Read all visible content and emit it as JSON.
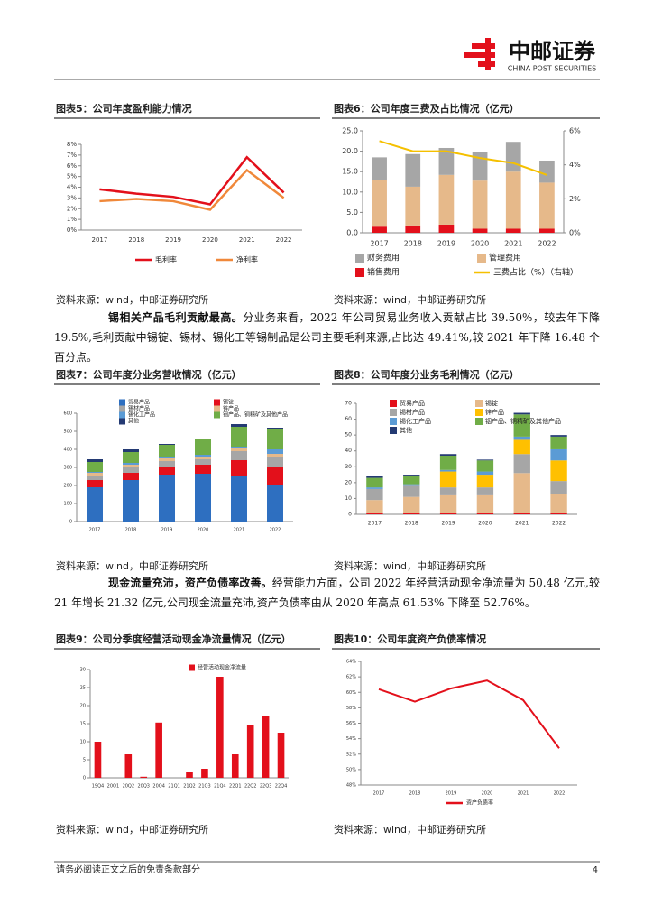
{
  "header": {
    "brand": "中邮证券",
    "brand_en": "CHINA POST SECURITIES"
  },
  "figures": [
    {
      "title": "图表5：公司年度盈利能力情况",
      "source": "资料来源：wind，中邮证券研究所",
      "chart_data": {
        "type": "line",
        "categories": [
          "2017",
          "2018",
          "2019",
          "2020",
          "2021",
          "2022"
        ],
        "series": [
          {
            "name": "毛利率",
            "color": "#e3101b",
            "values": [
              3.8,
              3.4,
              3.1,
              2.4,
              6.8,
              3.5
            ]
          },
          {
            "name": "净利率",
            "color": "#f0883a",
            "values": [
              2.7,
              2.9,
              2.7,
              1.9,
              5.6,
              3.0
            ]
          }
        ],
        "ylim": [
          0,
          8
        ],
        "yticks": [
          {
            "value": 0,
            "label": "0%"
          },
          {
            "value": 1,
            "label": "1%"
          },
          {
            "value": 2,
            "label": "2%"
          },
          {
            "value": 3,
            "label": "3%"
          },
          {
            "value": 4,
            "label": "4%"
          },
          {
            "value": 5,
            "label": "5%"
          },
          {
            "value": 6,
            "label": "6%"
          },
          {
            "value": 7,
            "label": "7%"
          },
          {
            "value": 8,
            "label": "8%"
          }
        ],
        "legend": "bottom"
      }
    },
    {
      "title": "图表6：公司年度三费及占比情况（亿元）",
      "source": "资料来源：wind，中邮证券研究所",
      "chart_data": {
        "type": "bar",
        "stacked": true,
        "categories": [
          "2017",
          "2018",
          "2019",
          "2020",
          "2021",
          "2022"
        ],
        "series": [
          {
            "name": "财务费用",
            "color": "#a6a6a6",
            "values": [
              5.5,
              8.0,
              6.6,
              7.0,
              7.3,
              5.4
            ],
            "order": 0
          },
          {
            "name": "管理费用",
            "color": "#e6b98a",
            "values": [
              11.5,
              9.5,
              12.2,
              11.8,
              14.0,
              11.3
            ],
            "order": 1
          },
          {
            "name": "销售费用",
            "color": "#e3101b",
            "values": [
              1.5,
              1.8,
              2.0,
              1.0,
              1.0,
              1.0
            ],
            "order": 2
          },
          {
            "name": "三费占比（%）（右轴）",
            "color": "#f5c000",
            "type": "line",
            "axis": "y2",
            "values": [
              5.4,
              4.8,
              4.8,
              4.4,
              4.1,
              3.4
            ]
          }
        ],
        "ylim": [
          0,
          25
        ],
        "yticks": [
          {
            "value": 0,
            "label": "0.0"
          },
          {
            "value": 5,
            "label": "5.0"
          },
          {
            "value": 10,
            "label": "10.0"
          },
          {
            "value": 15,
            "label": "15.0"
          },
          {
            "value": 20,
            "label": "20.0"
          },
          {
            "value": 25,
            "label": "25.0"
          }
        ],
        "y2lim": [
          0,
          6
        ],
        "y2ticks": [
          {
            "value": 0,
            "label": "0%"
          },
          {
            "value": 2,
            "label": "2%"
          },
          {
            "value": 4,
            "label": "4%"
          },
          {
            "value": 6,
            "label": "6%"
          }
        ],
        "legend": "bottom"
      }
    },
    {
      "title": "图表7：公司年度分业务营收情况（亿元）",
      "source": "资料来源：wind，中邮证券研究所",
      "chart_data": {
        "type": "bar",
        "stacked": true,
        "categories": [
          "2017",
          "2018",
          "2019",
          "2020",
          "2021",
          "2022"
        ],
        "series": [
          {
            "name": "贸易产品",
            "color": "#2e6fc0",
            "values": [
              190,
              230,
              260,
              265,
              250,
              205
            ]
          },
          {
            "name": "锡锭",
            "color": "#e3101b",
            "values": [
              40,
              40,
              45,
              50,
              90,
              100
            ]
          },
          {
            "name": "锡材产品",
            "color": "#a6a6a6",
            "values": [
              25,
              30,
              30,
              30,
              50,
              50
            ]
          },
          {
            "name": "锌产品",
            "color": "#e6b98a",
            "values": [
              15,
              15,
              15,
              15,
              15,
              20
            ]
          },
          {
            "name": "锡化工产品",
            "color": "#5b9bd5",
            "values": [
              5,
              10,
              10,
              10,
              10,
              25
            ]
          },
          {
            "name": "铟产品、铜精矿及其他产品",
            "color": "#70ad47",
            "values": [
              55,
              60,
              65,
              85,
              110,
              115
            ]
          },
          {
            "name": "其他",
            "color": "#243a73",
            "values": [
              15,
              15,
              5,
              5,
              15,
              5
            ]
          }
        ],
        "ylim": [
          0,
          600
        ],
        "yticks": [
          0,
          100,
          200,
          300,
          400,
          500,
          600
        ],
        "legend": "top"
      }
    },
    {
      "title": "图表8：公司年度分业务毛利情况（亿元）",
      "source": "资料来源：wind，中邮证券研究所",
      "chart_data": {
        "type": "bar",
        "stacked": true,
        "categories": [
          "2017",
          "2018",
          "2019",
          "2020",
          "2021",
          "2022"
        ],
        "series": [
          {
            "name": "贸易产品",
            "color": "#e3101b",
            "values": [
              1,
              1,
              1,
              1,
              1,
              1
            ]
          },
          {
            "name": "锡锭",
            "color": "#e6b98a",
            "values": [
              8,
              10,
              11,
              11,
              25,
              12
            ]
          },
          {
            "name": "锡材产品",
            "color": "#a6a6a6",
            "values": [
              7,
              7,
              5,
              5,
              12,
              8
            ]
          },
          {
            "name": "锌产品",
            "color": "#ffc000",
            "values": [
              0,
              0,
              10,
              8,
              9,
              13
            ]
          },
          {
            "name": "锡化工产品",
            "color": "#5b9bd5",
            "values": [
              1,
              1,
              1,
              2,
              2,
              7
            ]
          },
          {
            "name": "铟产品、铜精矿及其他产品",
            "color": "#70ad47",
            "values": [
              6,
              5,
              9,
              7,
              14,
              8
            ]
          },
          {
            "name": "其他",
            "color": "#243a73",
            "values": [
              1,
              1,
              1,
              0.5,
              1,
              1
            ]
          }
        ],
        "ylim": [
          0,
          70
        ],
        "yticks": [
          0,
          10,
          20,
          30,
          40,
          50,
          60,
          70
        ],
        "legend": "top"
      }
    },
    {
      "title": "图表9：公司分季度经营活动现金净流量情况（亿元）",
      "source": "资料来源：wind，中邮证券研究所",
      "chart_data": {
        "type": "bar",
        "categories": [
          "19Q4",
          "20Q1",
          "20Q2",
          "20Q3",
          "20Q4",
          "21Q1",
          "21Q2",
          "21Q3",
          "21Q4",
          "22Q1",
          "22Q2",
          "22Q3",
          "22Q4"
        ],
        "series": [
          {
            "name": "经营活动现金净流量",
            "color": "#e3101b",
            "values": [
              10,
              0,
              6.5,
              0.3,
              15.3,
              0,
              1.5,
              2.5,
              28,
              6.5,
              14.5,
              17,
              12.5
            ]
          }
        ],
        "ylim": [
          0,
          30
        ],
        "yticks": [
          0,
          5,
          10,
          15,
          20,
          25,
          30
        ],
        "legend": "top"
      }
    },
    {
      "title": "图表10：公司年度资产负债率情况",
      "source": "资料来源：wind，中邮证券研究所",
      "chart_data": {
        "type": "line",
        "categories": [
          "2017",
          "2018",
          "2019",
          "2020",
          "2021",
          "2022"
        ],
        "series": [
          {
            "name": "资产负债率",
            "color": "#e3101b",
            "values": [
              60.4,
              58.8,
              60.5,
              61.53,
              59.0,
              52.76
            ]
          }
        ],
        "ylim": [
          48,
          64
        ],
        "yticks": [
          {
            "value": 48,
            "label": "48%"
          },
          {
            "value": 50,
            "label": "50%"
          },
          {
            "value": 52,
            "label": "52%"
          },
          {
            "value": 54,
            "label": "54%"
          },
          {
            "value": 56,
            "label": "56%"
          },
          {
            "value": 58,
            "label": "58%"
          },
          {
            "value": 60,
            "label": "60%"
          },
          {
            "value": 62,
            "label": "62%"
          },
          {
            "value": 64,
            "label": "64%"
          }
        ],
        "legend": "bottom"
      }
    }
  ],
  "paragraphs": [
    {
      "bold": "锡相关产品毛利贡献最高。",
      "text": "分业务来看，2022 年公司贸易业务收入贡献占比 39.50%，较去年下降 19.5%,毛利贡献中锡锭、锡材、锡化工等锡制品是公司主要毛利来源,占比达 49.41%,较 2021 年下降 16.48 个百分点。"
    },
    {
      "bold": "现金流量充沛，资产负债率改善。",
      "text": "经营能力方面，公司 2022 年经营活动现金净流量为 50.48 亿元,较 21 年增长 21.32 亿元,公司现金流量充沛,资产负债率由从 2020 年高点 61.53% 下降至 52.76%。"
    }
  ],
  "footer": {
    "disclaimer": "请务必阅读正文之后的免责条款部分",
    "page": "4"
  }
}
